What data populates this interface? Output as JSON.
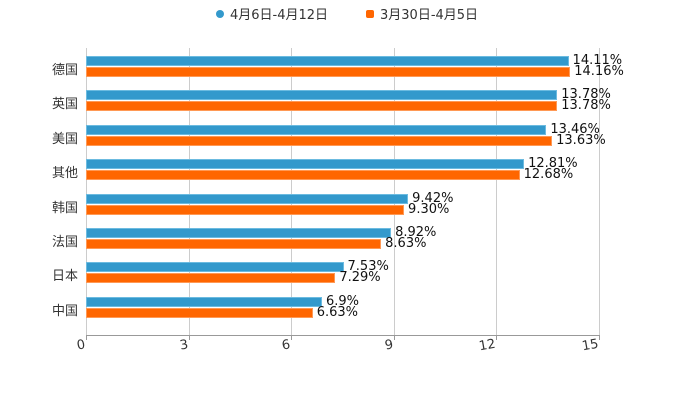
{
  "chart_data": {
    "type": "bar",
    "orientation": "horizontal",
    "title": "",
    "xlabel": "",
    "ylabel": "",
    "xlim": [
      0,
      15
    ],
    "x_ticks": [
      "0",
      "3",
      "6",
      "9",
      "12",
      "15"
    ],
    "grid": true,
    "legend_position": "top",
    "categories": [
      "德国",
      "英国",
      "美国",
      "其他",
      "韩国",
      "法国",
      "日本",
      "中国"
    ],
    "series": [
      {
        "name": "4月6日-4月12日",
        "color": "#3399cc",
        "values": [
          14.11,
          13.78,
          13.46,
          12.81,
          9.42,
          8.92,
          7.53,
          6.9
        ],
        "labels": [
          "14.11%",
          "13.78%",
          "13.46%",
          "12.81%",
          "9.42%",
          "8.92%",
          "7.53%",
          "6.9%"
        ]
      },
      {
        "name": "3月30日-4月5日",
        "color": "#ff6600",
        "values": [
          14.16,
          13.78,
          13.63,
          12.68,
          9.3,
          8.63,
          7.29,
          6.63
        ],
        "labels": [
          "14.16%",
          "13.78%",
          "13.63%",
          "12.68%",
          "9.30%",
          "8.63%",
          "7.29%",
          "6.63%"
        ]
      }
    ]
  },
  "legend": {
    "series1": "4月6日-4月12日",
    "series2": "3月30日-4月5日"
  }
}
